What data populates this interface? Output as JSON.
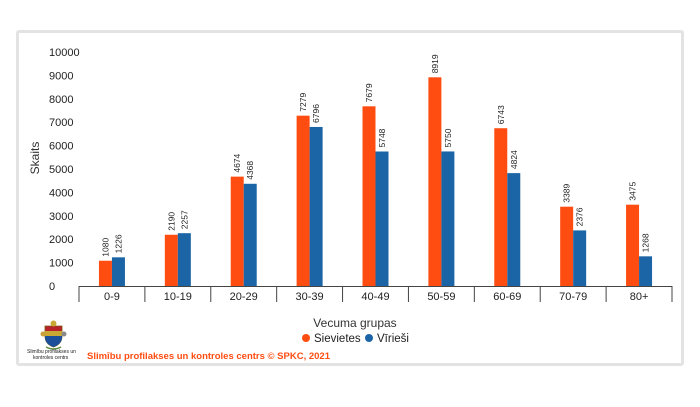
{
  "chart_data": {
    "type": "bar",
    "categories": [
      "0-9",
      "10-19",
      "20-29",
      "30-39",
      "40-49",
      "50-59",
      "60-69",
      "70-79",
      "80+"
    ],
    "series": [
      {
        "name": "Sievietes",
        "color": "#ff4d12",
        "values": [
          1080,
          2190,
          4674,
          7279,
          7679,
          8919,
          6743,
          3389,
          3475
        ]
      },
      {
        "name": "Vīrieši",
        "color": "#1b65a6",
        "values": [
          1226,
          2257,
          4368,
          6796,
          5748,
          5750,
          4824,
          2376,
          1268
        ]
      }
    ],
    "xlabel": "Vecuma grupas",
    "ylabel": "Skaits",
    "ylim": [
      0,
      10000
    ],
    "yticks": [
      0,
      1000,
      2000,
      3000,
      4000,
      5000,
      6000,
      7000,
      8000,
      9000,
      10000
    ],
    "grid": false,
    "legend": "bottom-center"
  },
  "footer": {
    "source_text": "Slimību profilakses un kontroles centrs © SPKC, 2021",
    "source_color": "#ff4d12",
    "logo_caption_line1": "Slimību profilakses un",
    "logo_caption_line2": "kontroles centrs",
    "logo_icon": "coat-of-arms-icon"
  }
}
